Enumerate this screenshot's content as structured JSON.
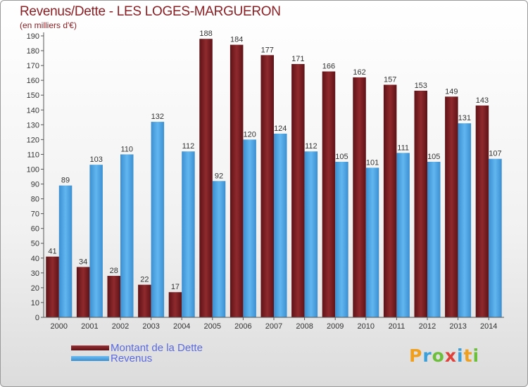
{
  "title": "Revenus/Dette - LES LOGES-MARGUERON",
  "subtitle": "(en milliers d'€)",
  "logo": "Proxiti",
  "colors": {
    "dette": "#7a1e22",
    "revenus": "#4aa3e6",
    "text": "#8a1f24",
    "legend_text": "#5a6ae0"
  },
  "legend": [
    {
      "label": "Montant de la Dette",
      "color": "#7a1e22"
    },
    {
      "label": "Revenus",
      "color": "#4aa3e6"
    }
  ],
  "chart_data": {
    "type": "bar",
    "title": "Revenus/Dette - LES LOGES-MARGUERON",
    "ylabel": "(en milliers d'€)",
    "categories": [
      "2000",
      "2001",
      "2002",
      "2003",
      "2004",
      "2005",
      "2006",
      "2007",
      "2008",
      "2009",
      "2010",
      "2011",
      "2012",
      "2013",
      "2014"
    ],
    "series": [
      {
        "name": "Montant de la Dette",
        "values": [
          41,
          34,
          28,
          22,
          17,
          188,
          184,
          177,
          171,
          166,
          162,
          157,
          153,
          149,
          143
        ]
      },
      {
        "name": "Revenus",
        "values": [
          89,
          103,
          110,
          132,
          112,
          92,
          120,
          124,
          112,
          105,
          101,
          111,
          105,
          131,
          107
        ]
      }
    ],
    "ylim": [
      0,
      190
    ],
    "yticks": [
      0,
      10,
      20,
      30,
      40,
      50,
      60,
      70,
      80,
      90,
      100,
      110,
      120,
      130,
      140,
      150,
      160,
      170,
      180,
      190
    ],
    "grid": false,
    "legend_position": "bottom-left"
  }
}
